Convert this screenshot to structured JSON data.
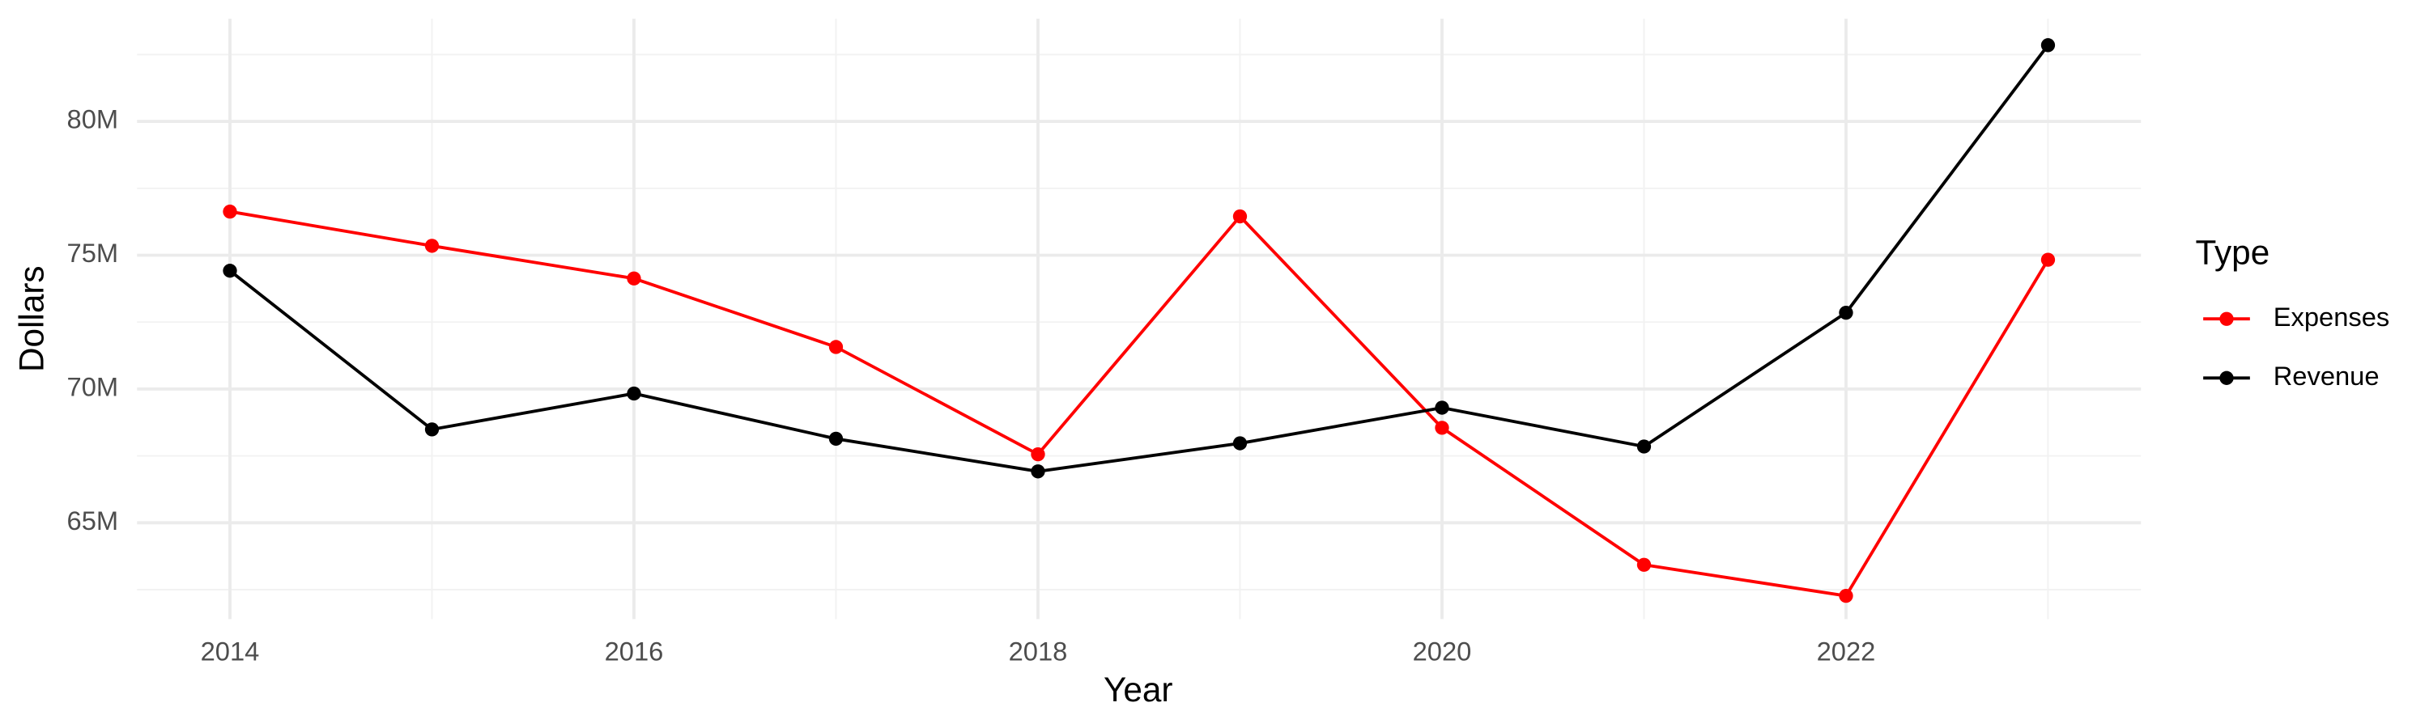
{
  "chart_data": {
    "type": "line",
    "x_label": "Year",
    "y_label": "Dollars",
    "x": [
      2014,
      2015,
      2016,
      2017,
      2018,
      2019,
      2020,
      2021,
      2022,
      2023
    ],
    "series": [
      {
        "name": "Expenses",
        "color": "#ff0000",
        "values": [
          76630000,
          75350000,
          74130000,
          71570000,
          67560000,
          76450000,
          68550000,
          63430000,
          62270000,
          74830000
        ]
      },
      {
        "name": "Revenue",
        "color": "#000000",
        "values": [
          74420000,
          68490000,
          69830000,
          68140000,
          66920000,
          67970000,
          69300000,
          67850000,
          72850000,
          82850000
        ]
      }
    ],
    "xlim": [
      2013.54,
      2023.46
    ],
    "xticks": [
      2014,
      2016,
      2018,
      2020,
      2022
    ],
    "ylim": [
      61400000,
      83840000
    ],
    "yticks": [
      {
        "value": 65000000,
        "label": "65M"
      },
      {
        "value": 70000000,
        "label": "70M"
      },
      {
        "value": 75000000,
        "label": "75M"
      },
      {
        "value": 80000000,
        "label": "80M"
      }
    ],
    "grid": true,
    "legend_title": "Type",
    "legend_position": "right"
  }
}
